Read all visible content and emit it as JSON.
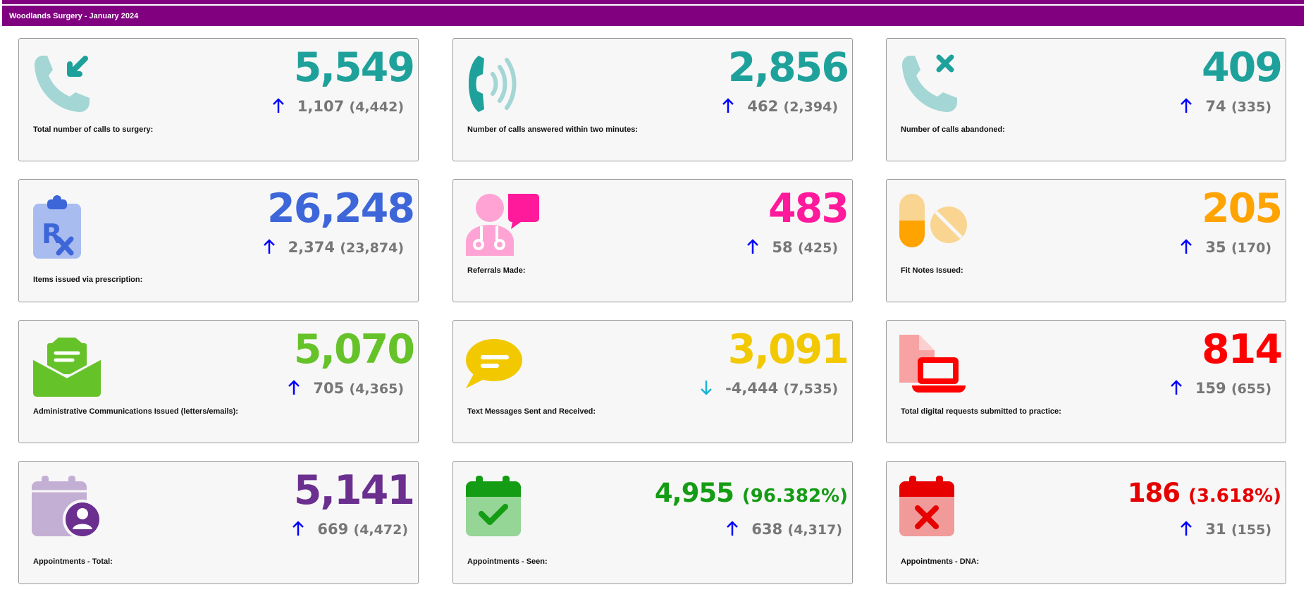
{
  "header": {
    "title": "Woodlands Surgery - January 2024"
  },
  "colors": {
    "header": "#800080",
    "teal": "#1fa19b",
    "blue": "#3d66d9",
    "pink": "#ff1a9c",
    "orange": "#ffa300",
    "green": "#66c229",
    "yellow": "#f2c800",
    "red": "#ff0000",
    "purple": "#6a2f8f",
    "seen_green": "#149c14",
    "dna_red": "#e60000",
    "arrow_up": "#0000ff",
    "arrow_down": "#1ab3d6"
  },
  "cards": [
    {
      "label": "Total number of calls to surgery:",
      "value": "5,549",
      "delta": "1,107",
      "previous": "(4,442)",
      "trend": "up",
      "icon": "phone-incoming-icon"
    },
    {
      "label": "Number of calls answered within two minutes:",
      "value": "2,856",
      "delta": "462",
      "previous": "(2,394)",
      "trend": "up",
      "icon": "phone-ringing-icon"
    },
    {
      "label": "Number of calls abandoned:",
      "value": "409",
      "delta": "74",
      "previous": "(335)",
      "trend": "up",
      "icon": "phone-missed-icon"
    },
    {
      "label": "Items issued via prescription:",
      "value": "26,248",
      "delta": "2,374",
      "previous": "(23,874)",
      "trend": "up",
      "icon": "prescription-clipboard-icon"
    },
    {
      "label": "Referrals Made:",
      "value": "483",
      "delta": "58",
      "previous": "(425)",
      "trend": "up",
      "icon": "doctor-referral-icon"
    },
    {
      "label": "Fit Notes Issued:",
      "value": "205",
      "delta": "35",
      "previous": "(170)",
      "trend": "up",
      "icon": "pills-icon"
    },
    {
      "label": "Administrative Communications Issued (letters/emails):",
      "value": "5,070",
      "delta": "705",
      "previous": "(4,365)",
      "trend": "up",
      "icon": "open-envelope-icon"
    },
    {
      "label": "Text Messages Sent and Received:",
      "value": "3,091",
      "delta": "-4,444",
      "previous": "(7,535)",
      "trend": "down",
      "icon": "chat-bubble-icon"
    },
    {
      "label": "Total digital requests submitted to practice:",
      "value": "814",
      "delta": "159",
      "previous": "(655)",
      "trend": "up",
      "icon": "laptop-document-icon"
    },
    {
      "label": "Appointments - Total:",
      "value": "5,141",
      "delta": "669",
      "previous": "(4,472)",
      "trend": "up",
      "icon": "calendar-user-icon"
    },
    {
      "label": "Appointments - Seen:",
      "value": "4,955",
      "percent": "(96.382%)",
      "delta": "638",
      "previous": "(4,317)",
      "trend": "up",
      "icon": "calendar-check-icon"
    },
    {
      "label": "Appointments - DNA:",
      "value": "186",
      "percent": "(3.618%)",
      "delta": "31",
      "previous": "(155)",
      "trend": "up",
      "icon": "calendar-x-icon"
    }
  ]
}
